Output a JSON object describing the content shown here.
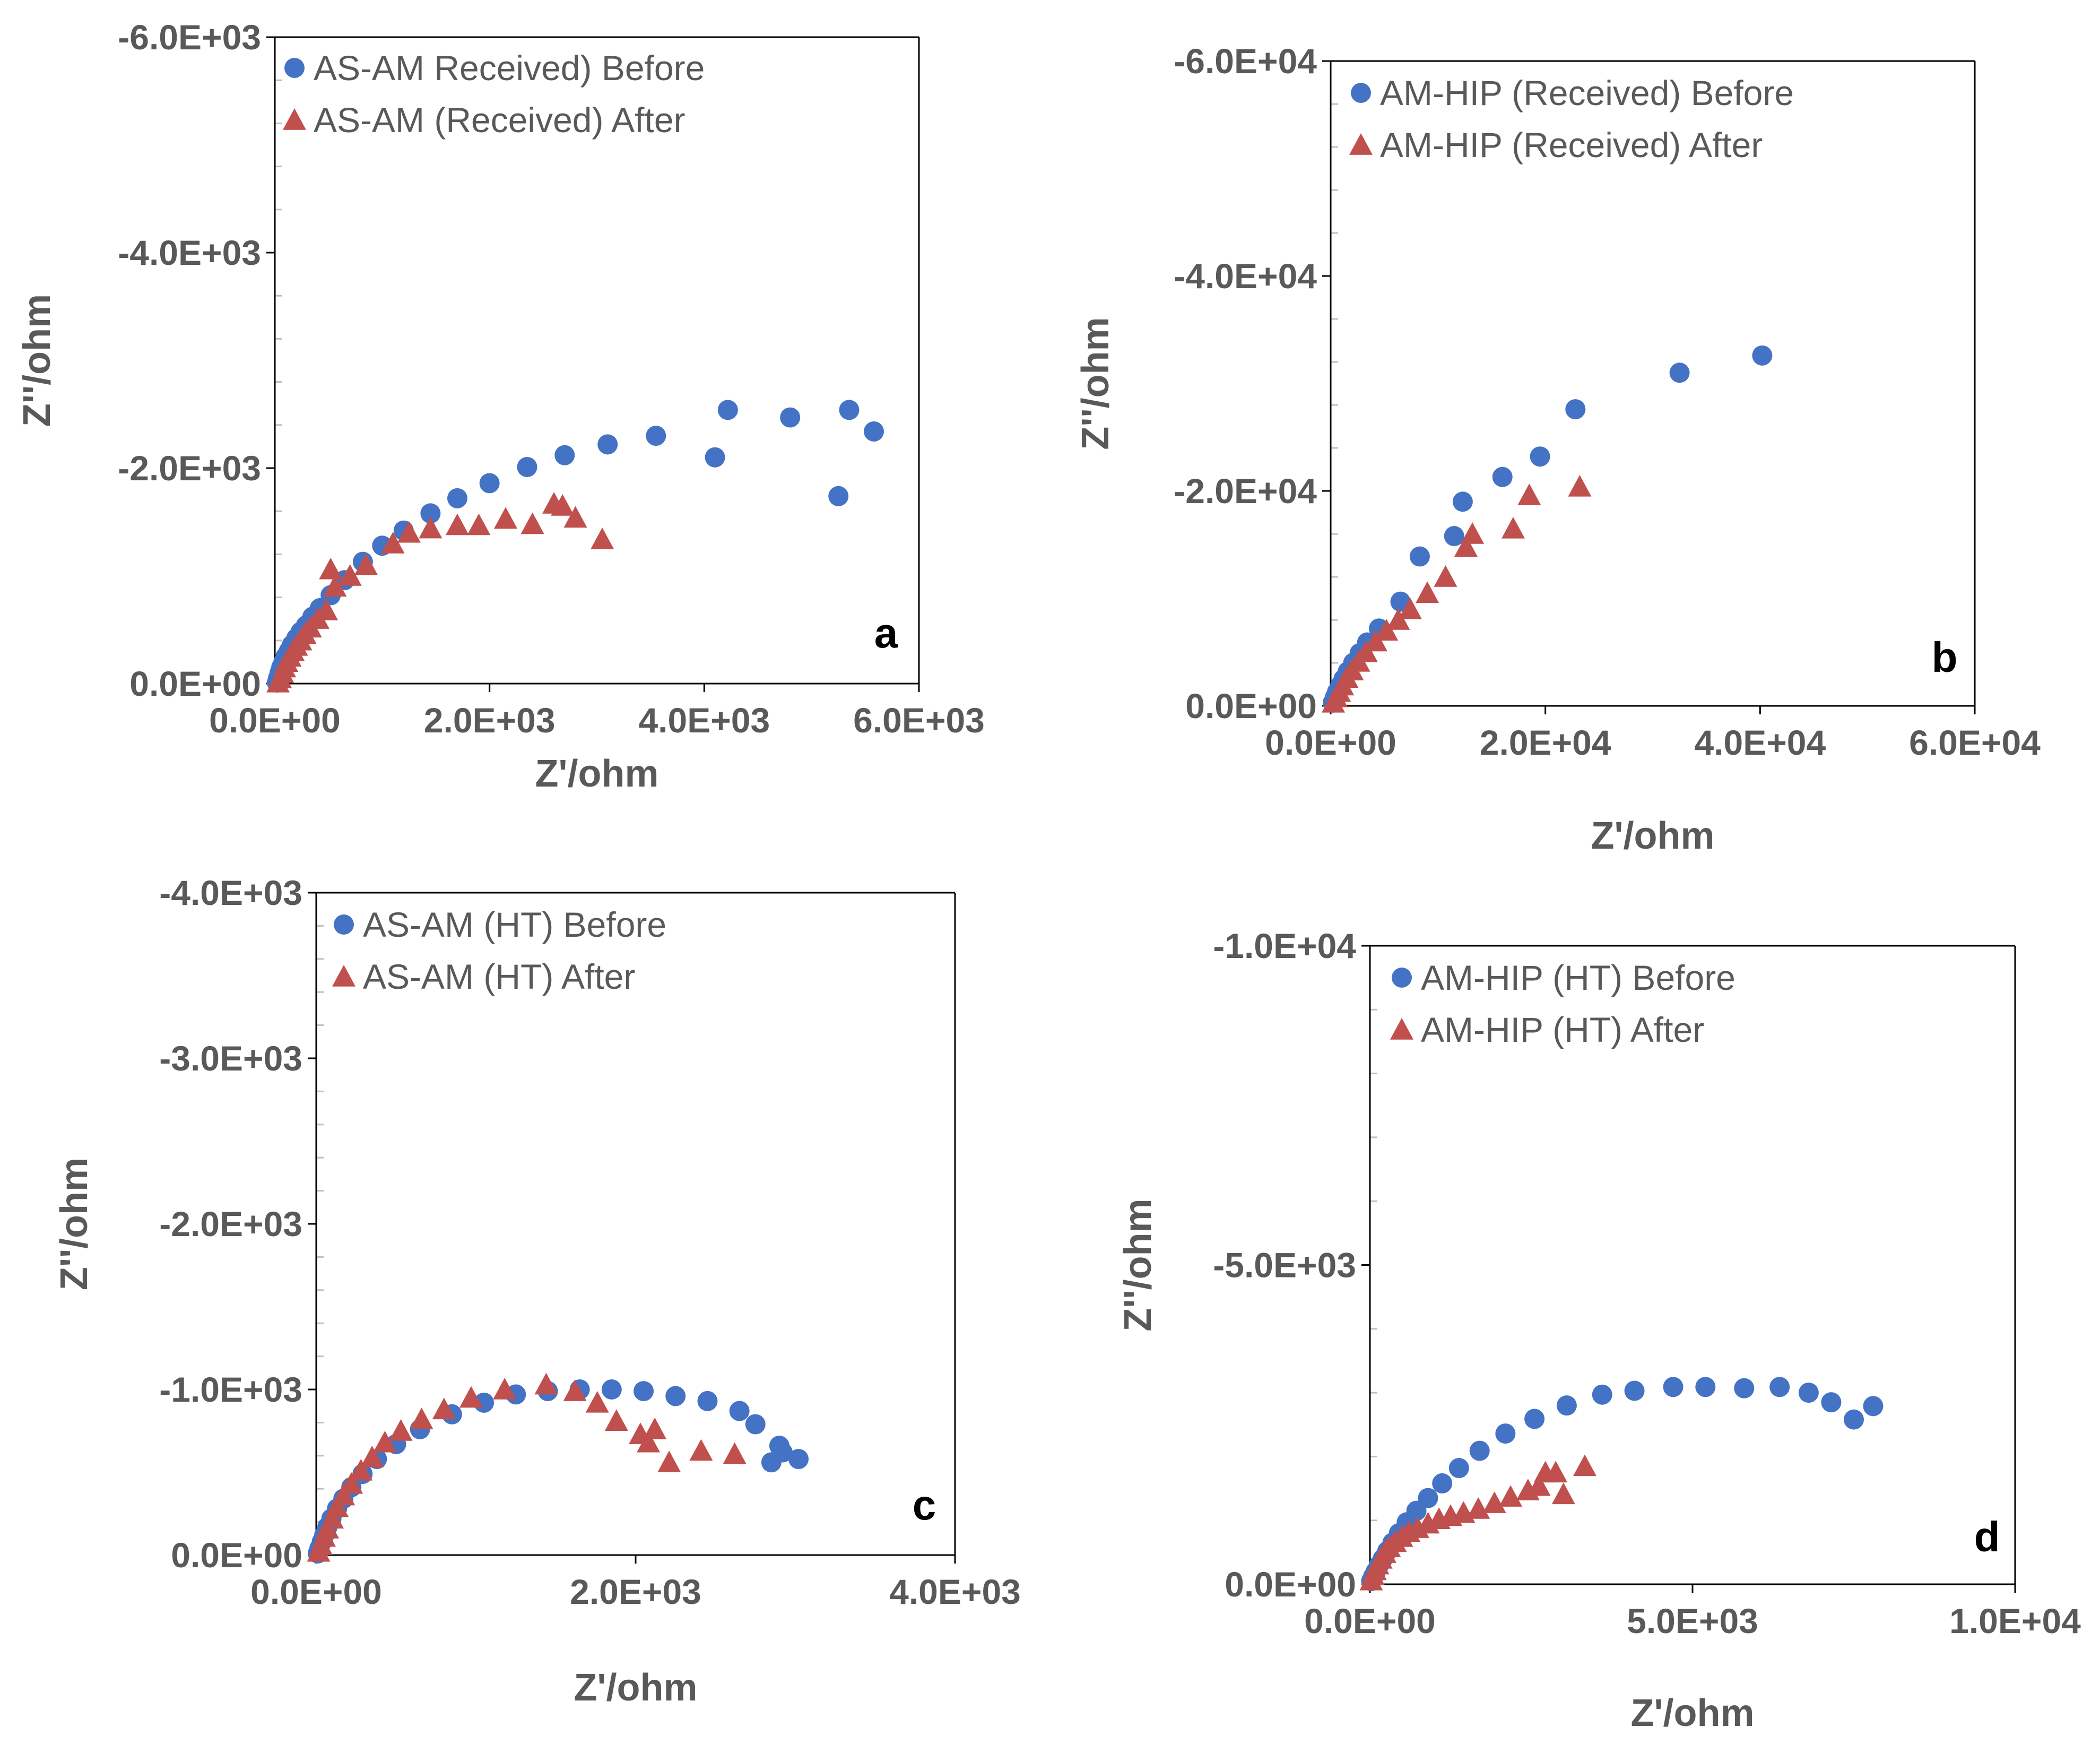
{
  "figure": {
    "colors": {
      "before": "#4472C4",
      "after": "#C0504D",
      "axis": "#000000",
      "minor": "#BFBFBF",
      "text": "#595959"
    }
  },
  "chart_data": [
    {
      "type": "scatter",
      "panel": "a",
      "xlabel": "Z'/ohm",
      "ylabel": "Z''/ohm",
      "xlim": [
        0,
        6000
      ],
      "ylim": [
        0,
        -6000
      ],
      "xticks": [
        0,
        2000,
        4000,
        6000
      ],
      "yticks": [
        0,
        -2000,
        -4000,
        -6000
      ],
      "xtick_labels": [
        "0.0E+00",
        "2.0E+03",
        "4.0E+03",
        "6.0E+03"
      ],
      "ytick_labels": [
        "0.0E+00",
        "-2.0E+03",
        "-4.0E+03",
        "-6.0E+03"
      ],
      "legend_position": "top-left",
      "series": [
        {
          "name": "AS-AM Received) Before",
          "marker": "circle",
          "x": [
            20,
            30,
            45,
            60,
            80,
            100,
            130,
            160,
            200,
            240,
            290,
            350,
            420,
            520,
            650,
            820,
            1000,
            1200,
            1450,
            1700,
            2000,
            2350,
            2700,
            3100,
            3550,
            4100,
            4220,
            4800,
            5250,
            5350,
            5580
          ],
          "y": [
            -10,
            -50,
            -100,
            -150,
            -200,
            -250,
            -300,
            -360,
            -420,
            -480,
            -540,
            -620,
            -700,
            -820,
            -960,
            -1130,
            -1280,
            -1420,
            -1580,
            -1720,
            -1860,
            -2010,
            -2120,
            -2220,
            -2300,
            -2100,
            -2540,
            -2470,
            -1740,
            -2540,
            -2340
          ]
        },
        {
          "name": "AS-AM (Received) After",
          "marker": "triangle",
          "x": [
            30,
            50,
            70,
            90,
            110,
            140,
            170,
            200,
            240,
            280,
            330,
            400,
            480,
            520,
            560,
            700,
            850,
            1100,
            1250,
            1450,
            1700,
            1900,
            2150,
            2400,
            2600,
            2680,
            2800,
            3050
          ],
          "y": [
            -10,
            -50,
            -100,
            -150,
            -200,
            -250,
            -300,
            -350,
            -400,
            -460,
            -520,
            -600,
            -680,
            -1060,
            -900,
            -1000,
            -1100,
            -1300,
            -1400,
            -1440,
            -1470,
            -1470,
            -1530,
            -1480,
            -1670,
            -1650,
            -1540,
            -1340
          ]
        }
      ]
    },
    {
      "type": "scatter",
      "panel": "b",
      "xlabel": "Z'/ohm",
      "ylabel": "Z''/ohm",
      "xlim": [
        0,
        60000
      ],
      "ylim": [
        0,
        -60000
      ],
      "xticks": [
        0,
        20000,
        40000,
        60000
      ],
      "yticks": [
        0,
        -20000,
        -40000,
        -60000
      ],
      "xtick_labels": [
        "0.0E+00",
        "2.0E+04",
        "4.0E+04",
        "6.0E+04"
      ],
      "ytick_labels": [
        "0.0E+00",
        "-2.0E+04",
        "-4.0E+04",
        "-6.0E+04"
      ],
      "legend_position": "top-left",
      "series": [
        {
          "name": "AM-HIP (Received) Before",
          "marker": "circle",
          "x": [
            200,
            400,
            600,
            900,
            1200,
            1600,
            2100,
            2700,
            3400,
            4500,
            6500,
            8300,
            11500,
            12300,
            16000,
            19500,
            22800,
            32500,
            40200
          ],
          "y": [
            -300,
            -800,
            -1300,
            -1900,
            -2500,
            -3200,
            -4000,
            -4900,
            -5900,
            -7200,
            -9700,
            -13900,
            -15800,
            -19000,
            -21300,
            -23200,
            -27600,
            -31000,
            -32600
          ]
        },
        {
          "name": "AM-HIP (Received) After",
          "marker": "triangle",
          "x": [
            250,
            500,
            800,
            1100,
            1500,
            2000,
            2600,
            3300,
            4200,
            5200,
            6300,
            7400,
            9000,
            10700,
            12600,
            13200,
            17000,
            18500,
            23200
          ],
          "y": [
            -300,
            -800,
            -1300,
            -1900,
            -2600,
            -3300,
            -4100,
            -5000,
            -6000,
            -7000,
            -8000,
            -9000,
            -10500,
            -12000,
            -14800,
            -16000,
            -16500,
            -19600,
            -20400
          ]
        }
      ]
    },
    {
      "type": "scatter",
      "panel": "c",
      "xlabel": "Z'/ohm",
      "ylabel": "Z''/ohm",
      "xlim": [
        0,
        4000
      ],
      "ylim": [
        0,
        -4000
      ],
      "xticks": [
        0,
        2000,
        4000
      ],
      "yticks": [
        0,
        -1000,
        -2000,
        -3000,
        -4000
      ],
      "xtick_labels": [
        "0.0E+00",
        "2.0E+03",
        "4.0E+03"
      ],
      "ytick_labels": [
        "0.0E+00",
        "-1.0E+03",
        "-2.0E+03",
        "-3.0E+03",
        "-4.0E+03"
      ],
      "legend_position": "top-left",
      "series": [
        {
          "name": "AS-AM (HT) Before",
          "marker": "circle",
          "x": [
            10,
            20,
            35,
            50,
            70,
            95,
            130,
            170,
            220,
            290,
            380,
            500,
            650,
            850,
            1050,
            1250,
            1450,
            1650,
            1850,
            2050,
            2250,
            2450,
            2650,
            2750,
            2850,
            2900,
            2920,
            3020
          ],
          "y": [
            -10,
            -40,
            -80,
            -120,
            -170,
            -220,
            -280,
            -340,
            -410,
            -490,
            -580,
            -670,
            -760,
            -850,
            -920,
            -970,
            -990,
            -1000,
            -1000,
            -990,
            -960,
            -930,
            -870,
            -790,
            -560,
            -660,
            -620,
            -580
          ]
        },
        {
          "name": "AS-AM (HT) After",
          "marker": "triangle",
          "x": [
            15,
            30,
            50,
            70,
            100,
            130,
            170,
            220,
            280,
            350,
            430,
            530,
            660,
            800,
            970,
            1180,
            1440,
            1620,
            1760,
            1880,
            2030,
            2080,
            2120,
            2210,
            2410,
            2620
          ],
          "y": [
            -20,
            -60,
            -110,
            -160,
            -220,
            -290,
            -360,
            -430,
            -510,
            -590,
            -680,
            -750,
            -820,
            -880,
            -950,
            -1000,
            -1030,
            -990,
            -920,
            -810,
            -730,
            -680,
            -760,
            -560,
            -630,
            -610
          ]
        }
      ]
    },
    {
      "type": "scatter",
      "panel": "d",
      "xlabel": "Z'/ohm",
      "ylabel": "Z''/ohm",
      "xlim": [
        0,
        10000
      ],
      "ylim": [
        0,
        -10000
      ],
      "xticks": [
        0,
        5000,
        10000
      ],
      "yticks": [
        0,
        -5000,
        -10000
      ],
      "xtick_labels": [
        "0.0E+00",
        "5.0E+03",
        "1.0E+04"
      ],
      "ytick_labels": [
        "0.0E+00",
        "-5.0E+03",
        "-1.0E+04"
      ],
      "legend_position": "top-left",
      "series": [
        {
          "name": "AM-HIP (HT) Before",
          "marker": "circle",
          "x": [
            20,
            50,
            90,
            140,
            200,
            270,
            350,
            450,
            570,
            720,
            900,
            1120,
            1380,
            1700,
            2100,
            2550,
            3050,
            3600,
            4100,
            4700,
            5200,
            5800,
            6350,
            6800,
            7150,
            7500,
            7800
          ],
          "y": [
            -50,
            -120,
            -200,
            -300,
            -400,
            -520,
            -650,
            -800,
            -970,
            -1150,
            -1350,
            -1580,
            -1820,
            -2090,
            -2360,
            -2590,
            -2800,
            -2970,
            -3030,
            -3090,
            -3090,
            -3070,
            -3090,
            -3000,
            -2850,
            -2580,
            -2790
          ]
        },
        {
          "name": "AM-HIP (HT) After",
          "marker": "triangle",
          "x": [
            20,
            50,
            80,
            120,
            170,
            230,
            300,
            390,
            490,
            600,
            740,
            900,
            1070,
            1250,
            1450,
            1680,
            1930,
            2180,
            2450,
            2620,
            2720,
            2880,
            3000,
            3330
          ],
          "y": [
            -60,
            -140,
            -220,
            -310,
            -400,
            -490,
            -580,
            -660,
            -740,
            -820,
            -880,
            -950,
            -1020,
            -1070,
            -1120,
            -1180,
            -1270,
            -1370,
            -1470,
            -1540,
            -1750,
            -1750,
            -1410,
            -1850
          ]
        }
      ]
    }
  ],
  "panel_labels": [
    "a",
    "b",
    "c",
    "d"
  ]
}
